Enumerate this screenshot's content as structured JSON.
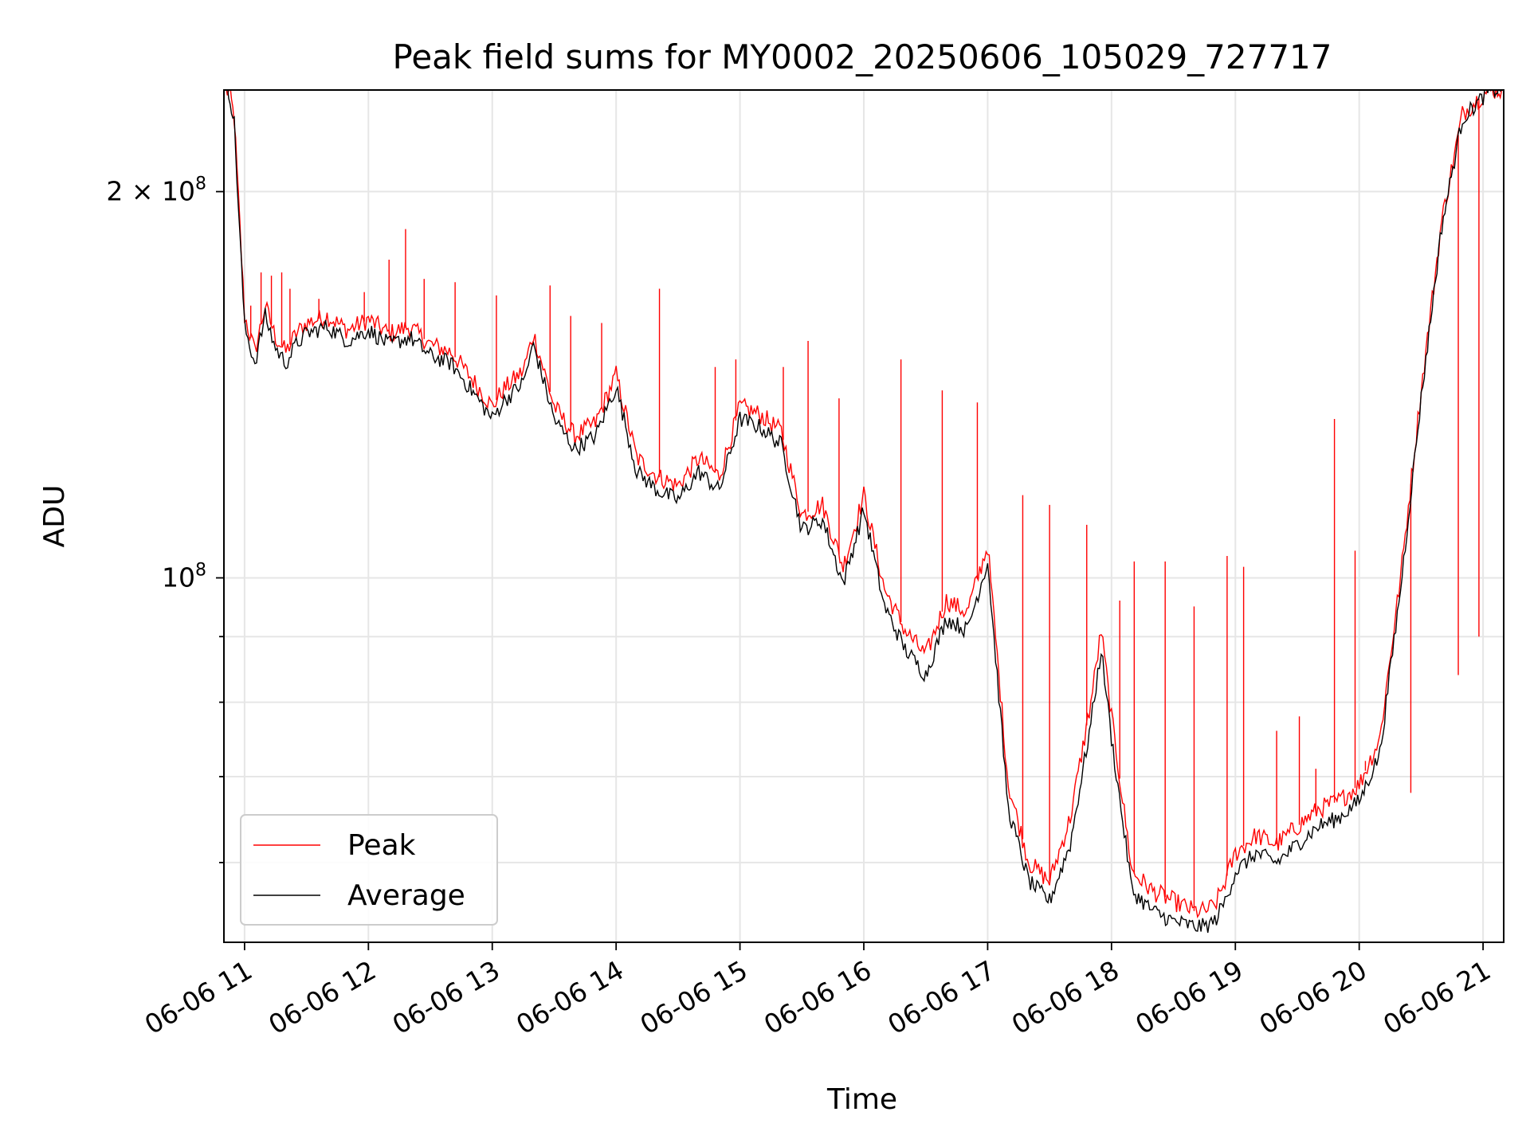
{
  "chart_data": {
    "type": "line",
    "title": "Peak field sums for MY0002_20250606_105029_727717",
    "xlabel": "Time",
    "ylabel": "ADU",
    "y_scale": "log",
    "grid": true,
    "legend_position": "lower-left",
    "x_range": [
      "2025-06-06 10:50",
      "2025-06-06 21:10"
    ],
    "ylim": [
      52000000,
      240000000
    ],
    "x_tick_labels": [
      "06-06 11",
      "06-06 12",
      "06-06 13",
      "06-06 14",
      "06-06 15",
      "06-06 16",
      "06-06 17",
      "06-06 18",
      "06-06 19",
      "06-06 20",
      "06-06 21"
    ],
    "y_tick_labels": [
      {
        "value": 100000000,
        "base": "10",
        "exp": "8"
      },
      {
        "value": 200000000,
        "base": "2 × 10",
        "exp": "8"
      }
    ],
    "series": [
      {
        "name": "Peak",
        "color": "#ff0000",
        "x": [
          "10:51",
          "10:53",
          "10:55",
          "10:57",
          "11:00",
          "11:05",
          "11:10",
          "11:15",
          "11:20",
          "11:25",
          "11:30",
          "11:40",
          "11:50",
          "12:00",
          "12:10",
          "12:20",
          "12:30",
          "12:40",
          "12:50",
          "13:00",
          "13:05",
          "13:15",
          "13:20",
          "13:30",
          "13:40",
          "13:50",
          "14:00",
          "14:10",
          "14:20",
          "14:30",
          "14:40",
          "14:50",
          "15:00",
          "15:10",
          "15:20",
          "15:30",
          "15:40",
          "15:50",
          "16:00",
          "16:10",
          "16:20",
          "16:30",
          "16:40",
          "16:50",
          "17:00",
          "17:10",
          "17:20",
          "17:30",
          "17:40",
          "17:50",
          "17:55",
          "18:00",
          "18:10",
          "18:20",
          "18:30",
          "18:40",
          "18:45",
          "18:50",
          "18:55",
          "19:00",
          "19:10",
          "19:20",
          "19:30",
          "19:40",
          "19:50",
          "20:00",
          "20:10",
          "20:20",
          "20:30",
          "20:40",
          "20:50",
          "21:00",
          "21:03",
          "21:05",
          "21:07",
          "21:09"
        ],
        "y": [
          240000000,
          238000000,
          228000000,
          198000000,
          160000000,
          150000000,
          163000000,
          154000000,
          150000000,
          155000000,
          158000000,
          160000000,
          156000000,
          159000000,
          155000000,
          157000000,
          152000000,
          150000000,
          143000000,
          136000000,
          140000000,
          145000000,
          155000000,
          136000000,
          129000000,
          132000000,
          144000000,
          124000000,
          120000000,
          118000000,
          124000000,
          120000000,
          136000000,
          134000000,
          130000000,
          112000000,
          114000000,
          102000000,
          116000000,
          98000000,
          91000000,
          87000000,
          96000000,
          94000000,
          106000000,
          69000000,
          60000000,
          58000000,
          65000000,
          80000000,
          91000000,
          78000000,
          59000000,
          57000000,
          56000000,
          55000000,
          55000000,
          55500000,
          58000000,
          61000000,
          63000000,
          62000000,
          64000000,
          66000000,
          67000000,
          69000000,
          75000000,
          100000000,
          140000000,
          190000000,
          230000000,
          238000000,
          240000000,
          240000000,
          240000000,
          240000000
        ],
        "spikes": [
          {
            "x": "11:03",
            "y": 163000000
          },
          {
            "x": "11:08",
            "y": 173000000
          },
          {
            "x": "11:13",
            "y": 172000000
          },
          {
            "x": "11:18",
            "y": 173000000
          },
          {
            "x": "11:22",
            "y": 168000000
          },
          {
            "x": "11:36",
            "y": 165000000
          },
          {
            "x": "11:58",
            "y": 167000000
          },
          {
            "x": "12:10",
            "y": 177000000
          },
          {
            "x": "12:18",
            "y": 187000000
          },
          {
            "x": "12:27",
            "y": 171000000
          },
          {
            "x": "12:42",
            "y": 170000000
          },
          {
            "x": "13:02",
            "y": 166000000
          },
          {
            "x": "13:28",
            "y": 169000000
          },
          {
            "x": "13:38",
            "y": 160000000
          },
          {
            "x": "13:53",
            "y": 158000000
          },
          {
            "x": "14:21",
            "y": 168000000
          },
          {
            "x": "14:48",
            "y": 146000000
          },
          {
            "x": "14:58",
            "y": 148000000
          },
          {
            "x": "15:21",
            "y": 146000000
          },
          {
            "x": "15:33",
            "y": 153000000
          },
          {
            "x": "15:48",
            "y": 138000000
          },
          {
            "x": "16:18",
            "y": 148000000
          },
          {
            "x": "16:38",
            "y": 140000000
          },
          {
            "x": "16:55",
            "y": 137000000
          },
          {
            "x": "17:17",
            "y": 116000000
          },
          {
            "x": "17:30",
            "y": 114000000
          },
          {
            "x": "17:48",
            "y": 110000000
          },
          {
            "x": "18:04",
            "y": 96000000
          },
          {
            "x": "18:11",
            "y": 103000000
          },
          {
            "x": "18:26",
            "y": 103000000
          },
          {
            "x": "18:40",
            "y": 95000000
          },
          {
            "x": "18:56",
            "y": 104000000
          },
          {
            "x": "19:04",
            "y": 102000000
          },
          {
            "x": "19:20",
            "y": 76000000
          },
          {
            "x": "19:31",
            "y": 78000000
          },
          {
            "x": "19:39",
            "y": 71000000
          },
          {
            "x": "19:48",
            "y": 133000000
          },
          {
            "x": "19:58",
            "y": 105000000
          },
          {
            "x": "20:03",
            "y": 72000000
          },
          {
            "x": "20:25",
            "y": 68000000
          },
          {
            "x": "20:48",
            "y": 84000000
          },
          {
            "x": "20:58",
            "y": 90000000
          }
        ]
      },
      {
        "name": "Average",
        "color": "#000000",
        "x": [
          "10:51",
          "10:53",
          "10:55",
          "10:57",
          "11:00",
          "11:05",
          "11:10",
          "11:15",
          "11:20",
          "11:25",
          "11:30",
          "11:40",
          "11:50",
          "12:00",
          "12:10",
          "12:20",
          "12:30",
          "12:40",
          "12:50",
          "13:00",
          "13:05",
          "13:15",
          "13:20",
          "13:30",
          "13:40",
          "13:50",
          "14:00",
          "14:10",
          "14:20",
          "14:30",
          "14:40",
          "14:50",
          "15:00",
          "15:10",
          "15:20",
          "15:30",
          "15:40",
          "15:50",
          "16:00",
          "16:10",
          "16:20",
          "16:30",
          "16:40",
          "16:50",
          "17:00",
          "17:10",
          "17:20",
          "17:30",
          "17:40",
          "17:50",
          "17:55",
          "18:00",
          "18:10",
          "18:20",
          "18:30",
          "18:40",
          "18:45",
          "18:50",
          "18:55",
          "19:00",
          "19:10",
          "19:20",
          "19:30",
          "19:40",
          "19:50",
          "20:00",
          "20:10",
          "20:20",
          "20:30",
          "20:40",
          "20:50",
          "21:00",
          "21:03",
          "21:05",
          "21:07",
          "21:09"
        ],
        "y": [
          240000000,
          237000000,
          226000000,
          195000000,
          157000000,
          147000000,
          160000000,
          151000000,
          147000000,
          152000000,
          155000000,
          157000000,
          153000000,
          156000000,
          152000000,
          154000000,
          149000000,
          147000000,
          140000000,
          133000000,
          137000000,
          142000000,
          152000000,
          133000000,
          126000000,
          129000000,
          141000000,
          121000000,
          117000000,
          115000000,
          121000000,
          117000000,
          133000000,
          131000000,
          127000000,
          109000000,
          111000000,
          99000000,
          113000000,
          95000000,
          88000000,
          84000000,
          93000000,
          91000000,
          103000000,
          66000000,
          58000000,
          56000000,
          62000000,
          77000000,
          88000000,
          75000000,
          57000000,
          55000000,
          54000000,
          53500000,
          53500000,
          54000000,
          56000000,
          59000000,
          61000000,
          60000000,
          62000000,
          64000000,
          65000000,
          67000000,
          73000000,
          98000000,
          138000000,
          188000000,
          228000000,
          237000000,
          240000000,
          240000000,
          240000000,
          240000000
        ]
      }
    ]
  }
}
